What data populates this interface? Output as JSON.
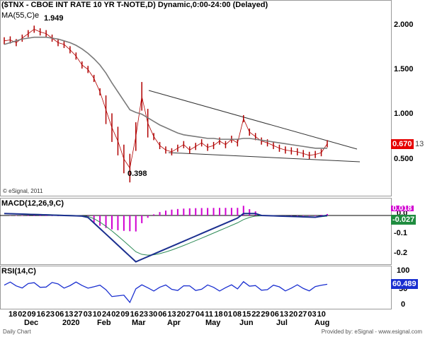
{
  "price_panel": {
    "title": "($TNX - CBOE INT RATE 10 YR T-NOTE,D) Dynamic,0:00-24:00 (Delayed)",
    "ma_label": "MA(55,C)e",
    "high_label": "1.949",
    "low_label": "0.398",
    "copyright": "© eSignal, 2011",
    "y_ticks": [
      "2.000",
      "1.500",
      "1.000",
      "0.500"
    ],
    "last_price": "0.670",
    "last_price_suffix": "13"
  },
  "macd_panel": {
    "title": "MACD(12,26,9,C)",
    "y_ticks": [
      "0.0",
      "-0.1",
      "-0.2"
    ],
    "value_top": "0.018",
    "value_bottom": "-0.027"
  },
  "rsi_panel": {
    "title": "RSI(14,C)",
    "y_ticks": [
      "100",
      "50",
      "0"
    ],
    "value": "60.489"
  },
  "x_axis": {
    "day_ticks": [
      "18",
      "02",
      "09",
      "16",
      "23",
      "06",
      "13",
      "27",
      "03",
      "10",
      "24",
      "02",
      "09",
      "16",
      "23",
      "30",
      "06",
      "13",
      "20",
      "27",
      "04",
      "11",
      "18",
      "01",
      "08",
      "15",
      "22",
      "29",
      "06",
      "13",
      "20",
      "27",
      "03",
      "10"
    ],
    "month_ticks": [
      "Dec",
      "2020",
      "Feb",
      "Mar",
      "Apr",
      "May",
      "Jun",
      "Jul",
      "Aug"
    ]
  },
  "footer": {
    "left": "Daily Chart",
    "right": "Provided by: eSignal - www.esignal.com"
  },
  "colors": {
    "price": "#b00000",
    "ma": "#7a7a7a",
    "macd": "#1b2f8f",
    "signal": "#2e8b57",
    "histogram": "#d100d1",
    "rsi": "#1a2fd0",
    "last_tag": "#e60000",
    "macd_tag_top": "#d100d1",
    "macd_tag_bottom": "#1f8c3f",
    "rsi_tag": "#1a2fd0"
  },
  "chart_data": {
    "type": "line",
    "series": [
      {
        "name": "$TNX",
        "values": [
          1.82,
          1.83,
          1.8,
          1.85,
          1.9,
          1.95,
          1.92,
          1.9,
          1.85,
          1.8,
          1.78,
          1.72,
          1.65,
          1.55,
          1.5,
          1.4,
          1.25,
          1.05,
          0.85,
          0.7,
          0.5,
          0.398,
          0.75,
          1.2,
          0.9,
          0.75,
          0.65,
          0.6,
          0.58,
          0.62,
          0.66,
          0.6,
          0.64,
          0.68,
          0.63,
          0.65,
          0.7,
          0.66,
          0.72,
          0.68,
          0.95,
          0.8,
          0.75,
          0.7,
          0.68,
          0.65,
          0.62,
          0.6,
          0.59,
          0.58,
          0.56,
          0.54,
          0.55,
          0.57,
          0.67
        ]
      },
      {
        "name": "MA(55,C)e",
        "values": [
          1.78,
          1.8,
          1.82,
          1.84,
          1.85,
          1.86,
          1.86,
          1.86,
          1.85,
          1.84,
          1.82,
          1.8,
          1.77,
          1.73,
          1.68,
          1.62,
          1.55,
          1.46,
          1.35,
          1.25,
          1.15,
          1.05,
          1.02,
          1.0,
          0.96,
          0.92,
          0.88,
          0.85,
          0.82,
          0.79,
          0.77,
          0.76,
          0.75,
          0.74,
          0.73,
          0.73,
          0.72,
          0.72,
          0.72,
          0.72,
          0.73,
          0.73,
          0.72,
          0.71,
          0.7,
          0.69,
          0.68,
          0.67,
          0.66,
          0.65,
          0.64,
          0.63,
          0.62,
          0.62,
          0.62
        ]
      }
    ]
  }
}
